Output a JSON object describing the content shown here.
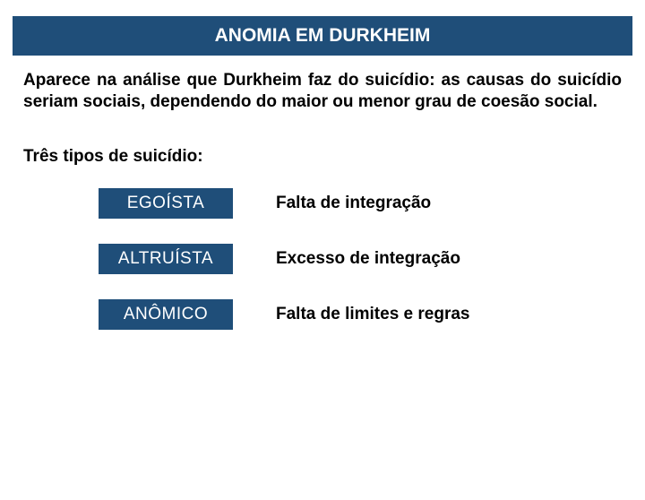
{
  "colors": {
    "header_bg": "#1f4e79",
    "header_text": "#ffffff",
    "body_text": "#000000",
    "page_bg": "#ffffff"
  },
  "typography": {
    "title_fontsize": 21,
    "body_fontsize": 19,
    "font_family": "Arial"
  },
  "title": "ANOMIA EM DURKHEIM",
  "paragraph": "Aparece na análise que Durkheim faz do suicídio: as causas do suicídio seriam sociais, dependendo do maior ou menor grau de coesão social.",
  "subhead": "Três tipos de suicídio:",
  "types": [
    {
      "label": "EGOÍSTA",
      "desc": "Falta de integração"
    },
    {
      "label": "ALTRUÍSTA",
      "desc": "Excesso de integração"
    },
    {
      "label": "ANÔMICO",
      "desc": "Falta de limites e regras"
    }
  ],
  "layout": {
    "type_box_width": 150,
    "type_box_left_margin": 110,
    "desc_box_width": 300,
    "gap": 36,
    "row_spacing": 28
  }
}
